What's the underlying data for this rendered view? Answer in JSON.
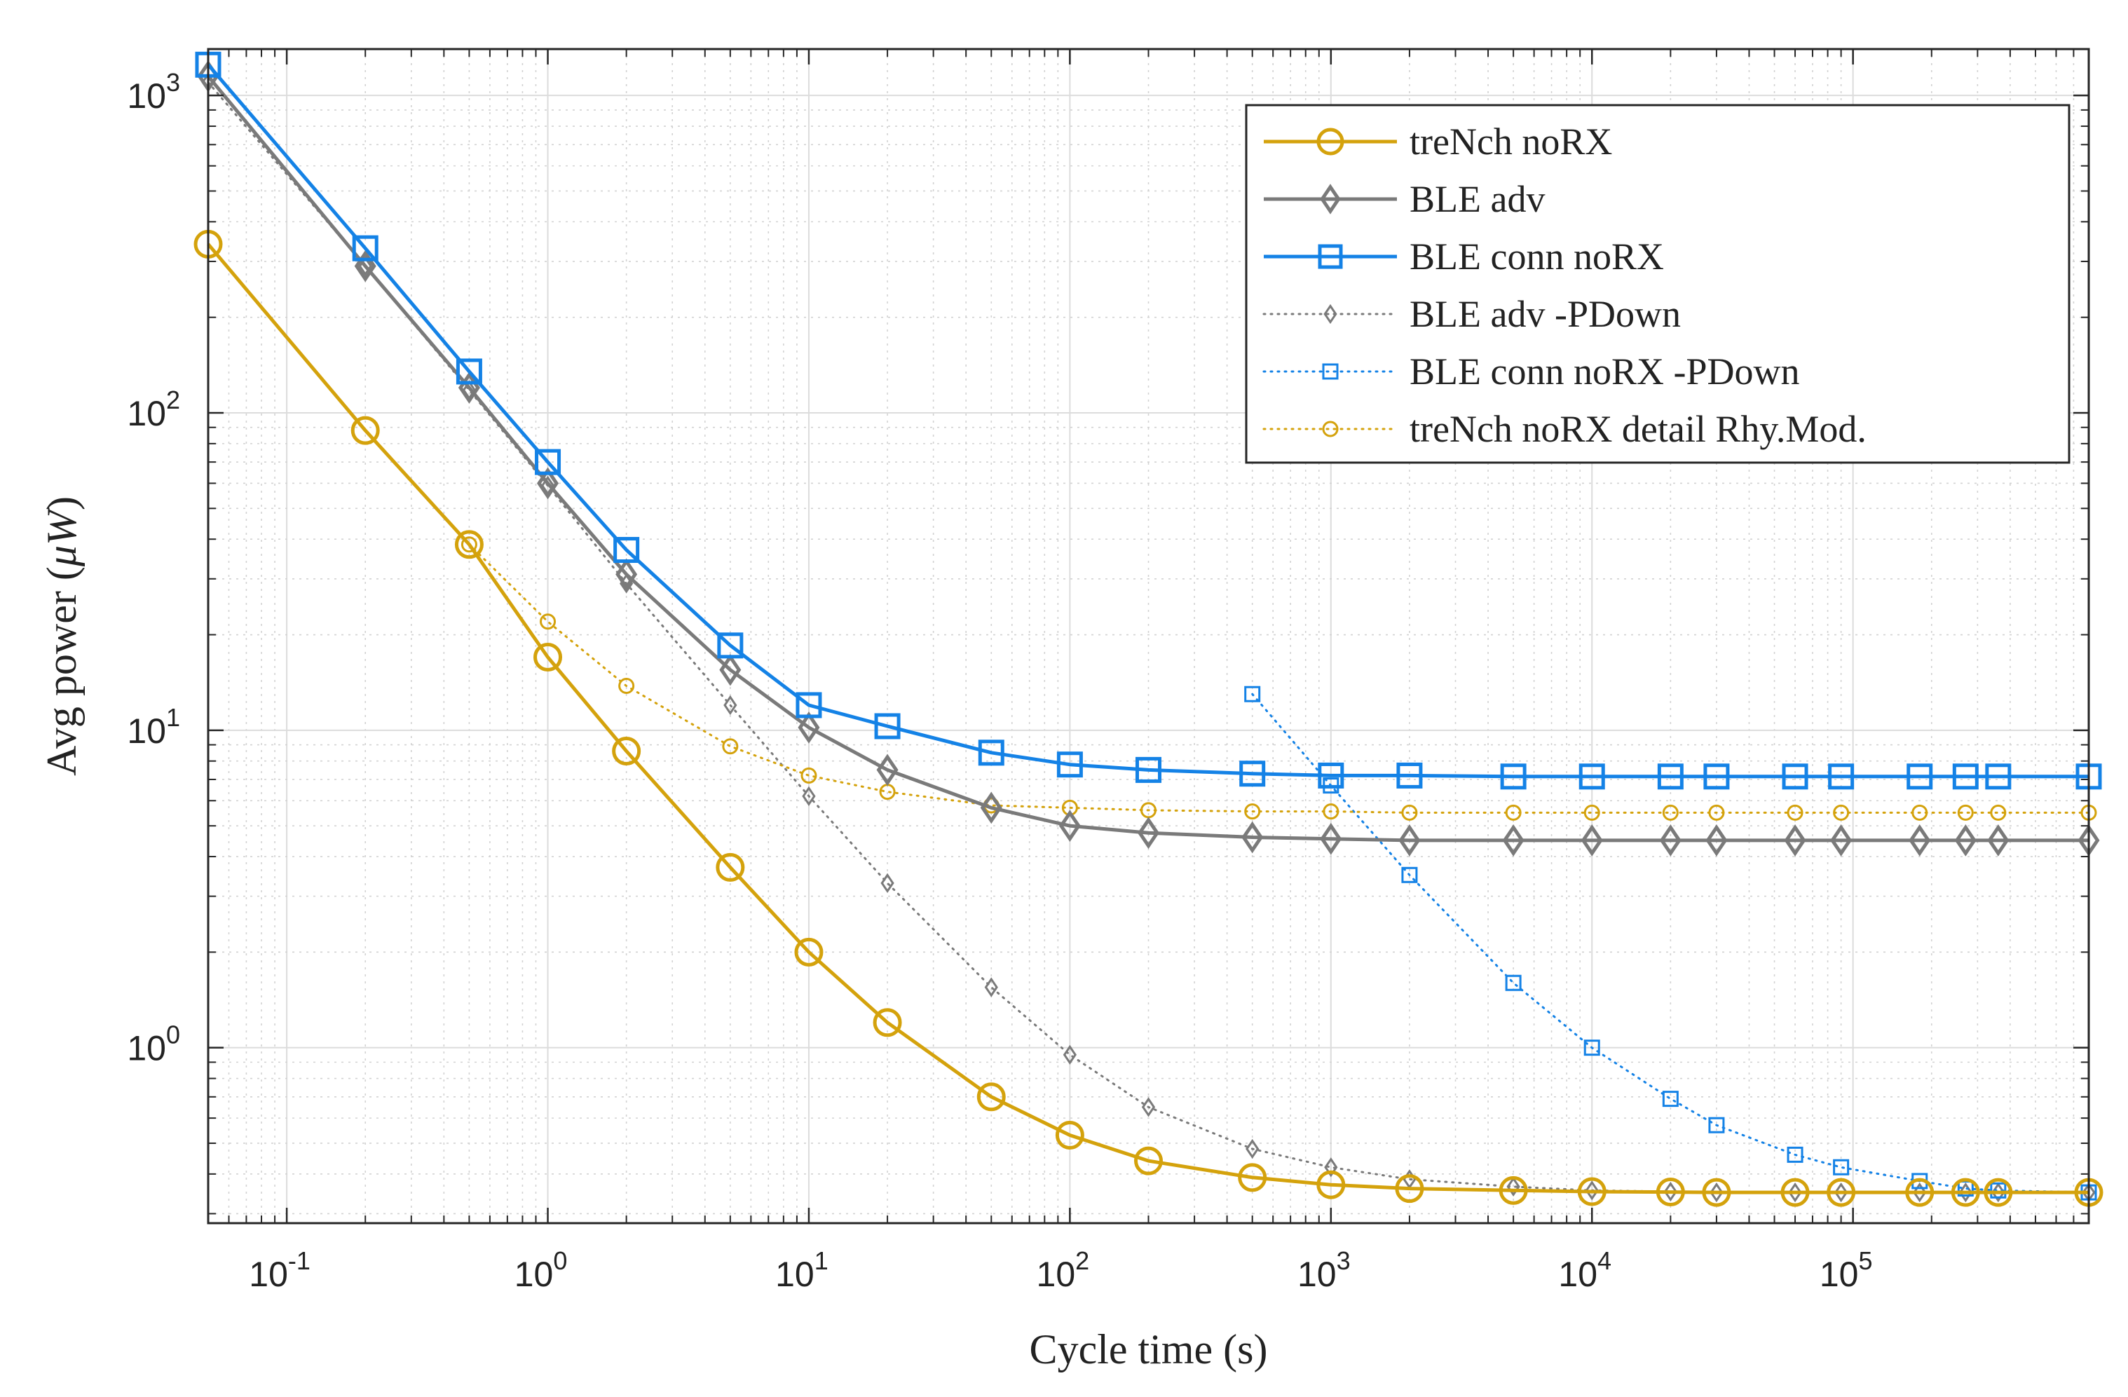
{
  "chart_data": {
    "type": "line",
    "xscale": "log",
    "yscale": "log",
    "xlim": [
      0.05,
      800000
    ],
    "ylim": [
      0.28,
      1400
    ],
    "grid": true,
    "legend_position": "top-right",
    "xlabel": "Cycle time (s)",
    "ylabel_prefix": "Avg power (",
    "ylabel_unit": "μW",
    "ylabel_suffix": ")",
    "x_ticks": [
      {
        "value": 0.1,
        "base": "10",
        "exp": "-1"
      },
      {
        "value": 1,
        "base": "10",
        "exp": "0"
      },
      {
        "value": 10,
        "base": "10",
        "exp": "1"
      },
      {
        "value": 100,
        "base": "10",
        "exp": "2"
      },
      {
        "value": 1000,
        "base": "10",
        "exp": "3"
      },
      {
        "value": 10000,
        "base": "10",
        "exp": "4"
      },
      {
        "value": 100000,
        "base": "10",
        "exp": "5"
      }
    ],
    "y_ticks": [
      {
        "value": 1,
        "base": "10",
        "exp": "0"
      },
      {
        "value": 10,
        "base": "10",
        "exp": "1"
      },
      {
        "value": 100,
        "base": "10",
        "exp": "2"
      },
      {
        "value": 1000,
        "base": "10",
        "exp": "3"
      }
    ],
    "series": [
      {
        "name": "treNch noRX",
        "color": "#D4A20C",
        "line": "solid",
        "marker": "circle",
        "marker_size": "large",
        "x": [
          0.05,
          0.2,
          0.5,
          1,
          2,
          5,
          10,
          20,
          50,
          100,
          200,
          500,
          1000,
          2000,
          5000,
          10000,
          20000,
          30000,
          60000,
          90000,
          180000,
          270000,
          360000,
          800000
        ],
        "y": [
          340,
          88,
          38.5,
          17,
          8.6,
          3.7,
          2.0,
          1.2,
          0.7,
          0.53,
          0.44,
          0.39,
          0.37,
          0.36,
          0.355,
          0.352,
          0.351,
          0.35,
          0.35,
          0.35,
          0.35,
          0.35,
          0.35,
          0.35
        ]
      },
      {
        "name": "BLE adv",
        "color": "#7A7A7A",
        "line": "solid",
        "marker": "diamond",
        "marker_size": "large",
        "x": [
          0.05,
          0.2,
          0.5,
          1,
          2,
          5,
          10,
          20,
          50,
          100,
          200,
          500,
          1000,
          2000,
          5000,
          10000,
          20000,
          30000,
          60000,
          90000,
          180000,
          270000,
          360000,
          800000
        ],
        "y": [
          1150,
          290,
          120,
          60,
          31,
          15.5,
          10.2,
          7.5,
          5.7,
          5.0,
          4.75,
          4.6,
          4.55,
          4.5,
          4.5,
          4.5,
          4.5,
          4.5,
          4.5,
          4.5,
          4.5,
          4.5,
          4.5,
          4.5
        ]
      },
      {
        "name": "BLE conn noRX",
        "color": "#1482E6",
        "line": "solid",
        "marker": "square",
        "marker_size": "large",
        "x": [
          0.05,
          0.2,
          0.5,
          1,
          2,
          5,
          10,
          20,
          50,
          100,
          200,
          500,
          1000,
          2000,
          5000,
          10000,
          20000,
          30000,
          60000,
          90000,
          180000,
          270000,
          360000,
          800000
        ],
        "y": [
          1250,
          330,
          135,
          70,
          37,
          18.5,
          12,
          10.3,
          8.5,
          7.8,
          7.5,
          7.3,
          7.2,
          7.2,
          7.15,
          7.15,
          7.15,
          7.15,
          7.15,
          7.15,
          7.15,
          7.15,
          7.15,
          7.15
        ]
      },
      {
        "name": "BLE adv -PDown",
        "color": "#7A7A7A",
        "line": "dotted",
        "marker": "diamond",
        "marker_size": "small",
        "x": [
          0.05,
          0.2,
          0.5,
          1,
          2,
          5,
          10,
          20,
          50,
          100,
          200,
          500,
          1000,
          2000,
          5000,
          10000,
          20000,
          30000,
          60000,
          90000,
          180000,
          270000,
          360000,
          800000
        ],
        "y": [
          1100,
          290,
          118,
          59,
          29,
          12,
          6.2,
          3.3,
          1.55,
          0.95,
          0.65,
          0.48,
          0.42,
          0.385,
          0.365,
          0.355,
          0.352,
          0.35,
          0.35,
          0.35,
          0.35,
          0.35,
          0.35,
          0.35
        ]
      },
      {
        "name": "BLE conn noRX -PDown",
        "color": "#1482E6",
        "line": "dotted",
        "marker": "square",
        "marker_size": "small",
        "x": [
          500,
          1000,
          2000,
          5000,
          10000,
          20000,
          30000,
          60000,
          90000,
          180000,
          270000,
          360000,
          800000
        ],
        "y": [
          13,
          6.7,
          3.5,
          1.6,
          1.0,
          0.69,
          0.57,
          0.46,
          0.42,
          0.38,
          0.36,
          0.355,
          0.35
        ]
      },
      {
        "name": "treNch noRX detail Rhy.Mod.",
        "color": "#D4A20C",
        "line": "dotted",
        "marker": "circle",
        "marker_size": "small",
        "x": [
          0.5,
          1,
          2,
          5,
          10,
          20,
          50,
          100,
          200,
          500,
          1000,
          2000,
          5000,
          10000,
          20000,
          30000,
          60000,
          90000,
          180000,
          270000,
          360000,
          800000
        ],
        "y": [
          38.5,
          22,
          13.8,
          8.9,
          7.2,
          6.4,
          5.8,
          5.7,
          5.6,
          5.55,
          5.55,
          5.5,
          5.5,
          5.5,
          5.5,
          5.5,
          5.5,
          5.5,
          5.5,
          5.5,
          5.5,
          5.5
        ]
      }
    ]
  }
}
